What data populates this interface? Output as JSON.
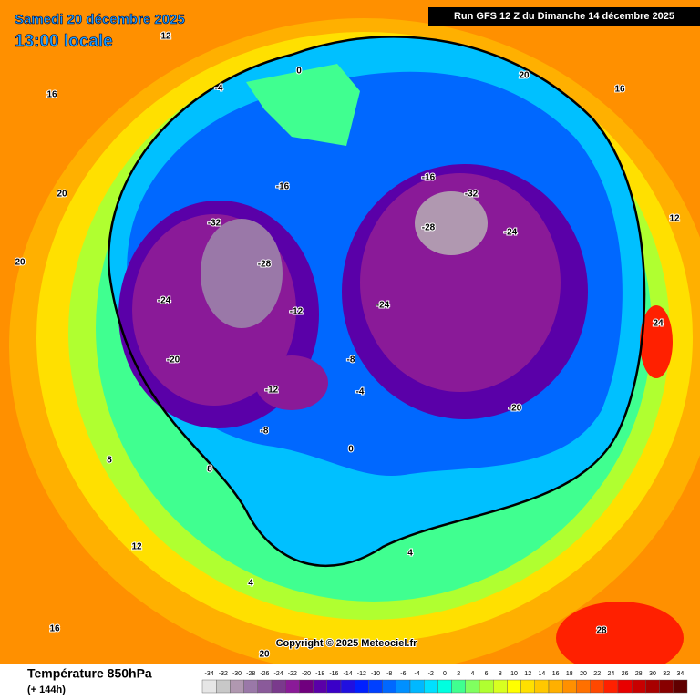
{
  "header": {
    "date": "Samedi 20 décembre 2025",
    "time": "13:00 locale",
    "run": "Run GFS 12 Z du Dimanche 14 décembre 2025"
  },
  "copyright": "Copyright © 2025 Meteociel.fr",
  "footer": {
    "title": "Température 850hPa",
    "lead": "(+ 144h)"
  },
  "legend": {
    "values": [
      -34,
      -32,
      -30,
      -28,
      -26,
      -24,
      -22,
      -20,
      -18,
      -16,
      -14,
      -12,
      -10,
      -8,
      -6,
      -4,
      -2,
      0,
      2,
      4,
      6,
      8,
      10,
      12,
      14,
      16,
      18,
      20,
      22,
      24,
      26,
      28,
      30,
      32,
      34
    ],
    "colors": [
      "#e6e6e6",
      "#c8c8c8",
      "#b098b0",
      "#9a78a8",
      "#8a5a9a",
      "#7a3a8c",
      "#8a1a98",
      "#70007e",
      "#5a00a8",
      "#3a00c8",
      "#2010e0",
      "#0020ff",
      "#0040ff",
      "#0068ff",
      "#0090ff",
      "#00b8ff",
      "#00e0ff",
      "#00ffe0",
      "#40ff90",
      "#80ff60",
      "#b0ff30",
      "#d8ff20",
      "#ffff00",
      "#ffe000",
      "#ffc800",
      "#ffb000",
      "#ff9000",
      "#ff7000",
      "#ff4800",
      "#ff2000",
      "#e80000",
      "#c80000",
      "#a80000",
      "#880000",
      "#600000"
    ]
  },
  "map_labels": [
    0,
    -4,
    12,
    16,
    20,
    20,
    -24,
    -32,
    -28,
    -20,
    -12,
    -16,
    -24,
    -28,
    -32,
    -16,
    -24,
    -20,
    -8,
    -4,
    0,
    4,
    8,
    12,
    16,
    20,
    24,
    28,
    -8,
    -12,
    4,
    12,
    16,
    20,
    8
  ]
}
